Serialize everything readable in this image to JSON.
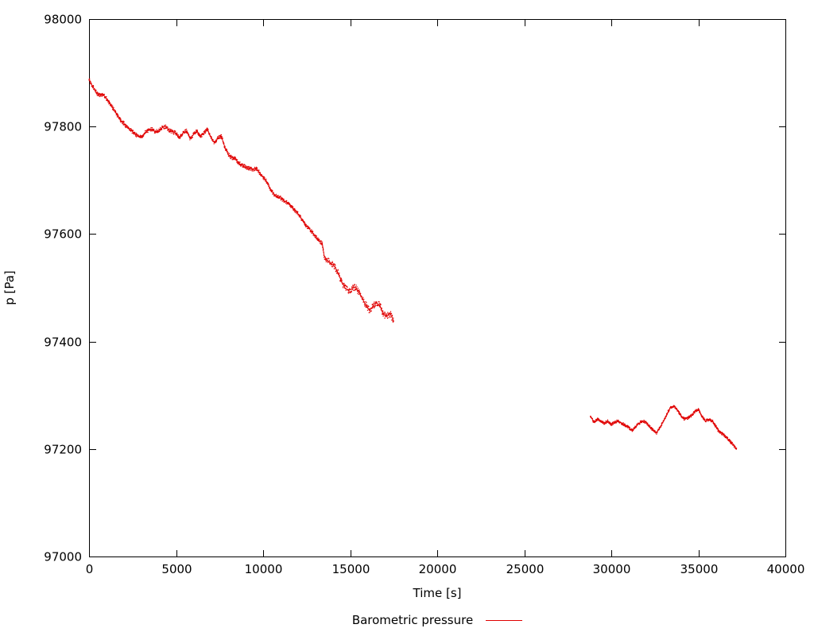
{
  "chart_data": {
    "type": "scatter",
    "title": "",
    "xlabel": "Time [s]",
    "ylabel": "p [Pa]",
    "xlim": [
      0,
      40000
    ],
    "ylim": [
      97000,
      98000
    ],
    "xticks": [
      0,
      5000,
      10000,
      15000,
      20000,
      25000,
      30000,
      35000,
      40000
    ],
    "yticks": [
      97000,
      97200,
      97400,
      97600,
      97800,
      98000
    ],
    "grid": false,
    "legend": {
      "label": "Barometric pressure",
      "position": "bottom-center"
    },
    "noise_seed": 987654321,
    "sample_step": 15,
    "series": [
      {
        "name": "Barometric pressure",
        "color": "#e00000",
        "segments": [
          {
            "noise": 3.5,
            "noise_regions": [
              {
                "from": 13500,
                "to": 17500,
                "amp": 6
              }
            ],
            "anchors": [
              [
                0,
                97888
              ],
              [
                150,
                97878
              ],
              [
                300,
                97870
              ],
              [
                450,
                97862
              ],
              [
                600,
                97858
              ],
              [
                800,
                97860
              ],
              [
                1000,
                97852
              ],
              [
                1200,
                97842
              ],
              [
                1400,
                97833
              ],
              [
                1600,
                97822
              ],
              [
                1800,
                97812
              ],
              [
                2000,
                97806
              ],
              [
                2200,
                97798
              ],
              [
                2400,
                97793
              ],
              [
                2600,
                97788
              ],
              [
                2800,
                97782
              ],
              [
                3000,
                97780
              ],
              [
                3200,
                97788
              ],
              [
                3400,
                97793
              ],
              [
                3600,
                97795
              ],
              [
                3800,
                97790
              ],
              [
                4000,
                97792
              ],
              [
                4200,
                97798
              ],
              [
                4400,
                97800
              ],
              [
                4600,
                97793
              ],
              [
                4800,
                97790
              ],
              [
                5000,
                97788
              ],
              [
                5200,
                97780
              ],
              [
                5400,
                97788
              ],
              [
                5600,
                97792
              ],
              [
                5800,
                97778
              ],
              [
                6000,
                97785
              ],
              [
                6200,
                97792
              ],
              [
                6400,
                97782
              ],
              [
                6600,
                97788
              ],
              [
                6800,
                97795
              ],
              [
                7000,
                97780
              ],
              [
                7200,
                97770
              ],
              [
                7400,
                97778
              ],
              [
                7600,
                97782
              ],
              [
                7800,
                97762
              ],
              [
                8000,
                97748
              ],
              [
                8200,
                97742
              ],
              [
                8400,
                97740
              ],
              [
                8600,
                97732
              ],
              [
                8800,
                97728
              ],
              [
                9000,
                97725
              ],
              [
                9200,
                97722
              ],
              [
                9400,
                97720
              ],
              [
                9600,
                97722
              ],
              [
                9800,
                97714
              ],
              [
                10000,
                97706
              ],
              [
                10200,
                97698
              ],
              [
                10400,
                97685
              ],
              [
                10600,
                97675
              ],
              [
                10800,
                97670
              ],
              [
                11000,
                97667
              ],
              [
                11200,
                97662
              ],
              [
                11400,
                97658
              ],
              [
                11600,
                97652
              ],
              [
                11800,
                97645
              ],
              [
                12000,
                97638
              ],
              [
                12200,
                97628
              ],
              [
                12400,
                97618
              ],
              [
                12600,
                97612
              ],
              [
                12800,
                97604
              ],
              [
                13000,
                97596
              ],
              [
                13200,
                97588
              ],
              [
                13400,
                97582
              ],
              [
                13500,
                97560
              ],
              [
                13700,
                97550
              ],
              [
                13900,
                97545
              ],
              [
                14100,
                97540
              ],
              [
                14300,
                97528
              ],
              [
                14500,
                97512
              ],
              [
                14700,
                97500
              ],
              [
                14900,
                97495
              ],
              [
                15100,
                97498
              ],
              [
                15300,
                97502
              ],
              [
                15500,
                97492
              ],
              [
                15700,
                97480
              ],
              [
                15900,
                97468
              ],
              [
                16100,
                97458
              ],
              [
                16300,
                97465
              ],
              [
                16500,
                97472
              ],
              [
                16700,
                97468
              ],
              [
                16900,
                97450
              ],
              [
                17100,
                97448
              ],
              [
                17300,
                97452
              ],
              [
                17500,
                97438
              ]
            ]
          },
          {
            "noise": 2.5,
            "noise_regions": [],
            "anchors": [
              [
                28800,
                97262
              ],
              [
                29000,
                97250
              ],
              [
                29200,
                97256
              ],
              [
                29400,
                97252
              ],
              [
                29600,
                97248
              ],
              [
                29800,
                97252
              ],
              [
                30000,
                97246
              ],
              [
                30200,
                97250
              ],
              [
                30400,
                97252
              ],
              [
                30600,
                97248
              ],
              [
                30800,
                97244
              ],
              [
                31000,
                97240
              ],
              [
                31200,
                97235
              ],
              [
                31400,
                97242
              ],
              [
                31600,
                97248
              ],
              [
                31800,
                97252
              ],
              [
                32000,
                97250
              ],
              [
                32200,
                97242
              ],
              [
                32400,
                97235
              ],
              [
                32600,
                97230
              ],
              [
                32800,
                97240
              ],
              [
                33000,
                97252
              ],
              [
                33200,
                97265
              ],
              [
                33400,
                97278
              ],
              [
                33600,
                97280
              ],
              [
                33800,
                97272
              ],
              [
                34000,
                97262
              ],
              [
                34200,
                97256
              ],
              [
                34400,
                97258
              ],
              [
                34600,
                97262
              ],
              [
                34800,
                97270
              ],
              [
                35000,
                97274
              ],
              [
                35200,
                97262
              ],
              [
                35400,
                97252
              ],
              [
                35600,
                97255
              ],
              [
                35800,
                97252
              ],
              [
                36000,
                97242
              ],
              [
                36200,
                97232
              ],
              [
                36400,
                97228
              ],
              [
                36600,
                97222
              ],
              [
                36800,
                97215
              ],
              [
                37000,
                97208
              ],
              [
                37200,
                97200
              ]
            ]
          }
        ]
      }
    ]
  }
}
